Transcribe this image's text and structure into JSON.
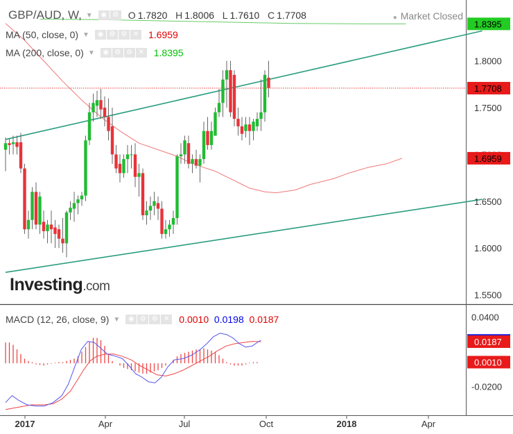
{
  "header": {
    "symbol": "GBP/AUD, W,",
    "open_label": "O",
    "open": "1.7820",
    "high_label": "H",
    "high": "1.8006",
    "low_label": "L",
    "low": "1.7610",
    "close_label": "C",
    "close": "1.7708",
    "market_status": "Market Closed",
    "ma50_label": "MA (50, close, 0)",
    "ma50_value": "1.6959",
    "ma200_label": "MA (200, close, 0)",
    "ma200_value": "1.8395",
    "macd_label": "MACD (12, 26, close, 9)",
    "macd_hist": "0.0010",
    "macd_line": "0.0198",
    "macd_signal": "0.0187"
  },
  "logo": {
    "main": "Investing",
    "suffix": ".com"
  },
  "colors": {
    "up": "#22bb33",
    "down": "#e8333a",
    "ma50": "#f07878",
    "ma200": "#66cc66",
    "channel": "#2a9d7f",
    "macd": "#5555ee",
    "signal": "#ee4444",
    "hist": "#ee4444",
    "last_price_bg": "#e81a1a",
    "ma200_bg": "#22cc22"
  },
  "chart_data": [
    {
      "type": "candlestick",
      "title": "GBP/AUD, W,",
      "x_ticks": [
        "2017",
        "Apr",
        "Jul",
        "Oct",
        "2018",
        "Apr"
      ],
      "y_ticks": [
        "1.6000",
        "1.6500",
        "1.7000",
        "1.7500",
        "1.8000",
        "1.5500"
      ],
      "ylim": [
        1.54,
        1.865
      ],
      "grid": false,
      "tags": [
        {
          "label": "1.8395",
          "value": 1.8395,
          "kind": "ma200"
        },
        {
          "label": "1.7708",
          "value": 1.7708,
          "kind": "last"
        },
        {
          "label": "1.6959",
          "value": 1.6959,
          "kind": "ma50"
        }
      ],
      "last_price": 1.7708,
      "candles": [
        [
          1.705,
          1.718,
          1.682,
          1.712
        ],
        [
          1.712,
          1.717,
          1.7,
          1.71
        ],
        [
          1.711,
          1.72,
          1.7,
          1.713
        ],
        [
          1.713,
          1.72,
          1.7,
          1.708
        ],
        [
          1.713,
          1.723,
          1.68,
          1.685
        ],
        [
          1.685,
          1.69,
          1.615,
          1.62
        ],
        [
          1.62,
          1.64,
          1.61,
          1.63
        ],
        [
          1.63,
          1.665,
          1.62,
          1.66
        ],
        [
          1.66,
          1.67,
          1.62,
          1.625
        ],
        [
          1.625,
          1.66,
          1.615,
          1.655
        ],
        [
          1.628,
          1.64,
          1.61,
          1.618
        ],
        [
          1.618,
          1.63,
          1.605,
          1.625
        ],
        [
          1.625,
          1.64,
          1.605,
          1.62
        ],
        [
          1.622,
          1.63,
          1.6,
          1.615
        ],
        [
          1.62,
          1.625,
          1.6,
          1.61
        ],
        [
          1.61,
          1.632,
          1.595,
          1.605
        ],
        [
          1.605,
          1.64,
          1.59,
          1.638
        ],
        [
          1.638,
          1.65,
          1.63,
          1.643
        ],
        [
          1.642,
          1.66,
          1.628,
          1.648
        ],
        [
          1.648,
          1.656,
          1.636,
          1.652
        ],
        [
          1.652,
          1.66,
          1.645,
          1.656
        ],
        [
          1.656,
          1.72,
          1.65,
          1.715
        ],
        [
          1.715,
          1.755,
          1.71,
          1.745
        ],
        [
          1.745,
          1.765,
          1.735,
          1.755
        ],
        [
          1.752,
          1.768,
          1.74,
          1.758
        ],
        [
          1.758,
          1.77,
          1.738,
          1.748
        ],
        [
          1.75,
          1.762,
          1.73,
          1.74
        ],
        [
          1.74,
          1.76,
          1.715,
          1.725
        ],
        [
          1.73,
          1.75,
          1.69,
          1.7
        ],
        [
          1.7,
          1.71,
          1.68,
          1.685
        ],
        [
          1.69,
          1.7,
          1.67,
          1.68
        ],
        [
          1.68,
          1.7,
          1.675,
          1.695
        ],
        [
          1.695,
          1.71,
          1.68,
          1.7
        ],
        [
          1.7,
          1.71,
          1.685,
          1.7
        ],
        [
          1.7,
          1.712,
          1.665,
          1.676
        ],
        [
          1.676,
          1.69,
          1.655,
          1.68
        ],
        [
          1.68,
          1.685,
          1.63,
          1.635
        ],
        [
          1.635,
          1.65,
          1.625,
          1.64
        ],
        [
          1.64,
          1.655,
          1.63,
          1.645
        ],
        [
          1.645,
          1.66,
          1.635,
          1.65
        ],
        [
          1.648,
          1.655,
          1.63,
          1.642
        ],
        [
          1.642,
          1.65,
          1.61,
          1.615
        ],
        [
          1.615,
          1.63,
          1.61,
          1.62
        ],
        [
          1.62,
          1.63,
          1.612,
          1.625
        ],
        [
          1.625,
          1.64,
          1.615,
          1.632
        ],
        [
          1.632,
          1.7,
          1.625,
          1.698
        ],
        [
          1.698,
          1.712,
          1.69,
          1.7
        ],
        [
          1.7,
          1.72,
          1.69,
          1.715
        ],
        [
          1.712,
          1.72,
          1.685,
          1.69
        ],
        [
          1.69,
          1.7,
          1.68,
          1.695
        ],
        [
          1.695,
          1.705,
          1.685,
          1.688
        ],
        [
          1.688,
          1.7,
          1.67,
          1.695
        ],
        [
          1.695,
          1.735,
          1.69,
          1.725
        ],
        [
          1.725,
          1.74,
          1.705,
          1.71
        ],
        [
          1.71,
          1.735,
          1.705,
          1.725
        ],
        [
          1.72,
          1.75,
          1.72,
          1.745
        ],
        [
          1.745,
          1.77,
          1.74,
          1.755
        ],
        [
          1.755,
          1.79,
          1.74,
          1.78
        ],
        [
          1.78,
          1.8,
          1.75,
          1.79
        ],
        [
          1.79,
          1.8,
          1.74,
          1.745
        ],
        [
          1.785,
          1.79,
          1.73,
          1.738
        ],
        [
          1.738,
          1.75,
          1.72,
          1.73
        ],
        [
          1.73,
          1.74,
          1.715,
          1.722
        ],
        [
          1.725,
          1.74,
          1.718,
          1.732
        ],
        [
          1.732,
          1.74,
          1.71,
          1.725
        ],
        [
          1.725,
          1.738,
          1.715,
          1.735
        ],
        [
          1.73,
          1.745,
          1.725,
          1.738
        ],
        [
          1.738,
          1.78,
          1.725,
          1.745
        ],
        [
          1.745,
          1.79,
          1.735,
          1.785
        ],
        [
          1.782,
          1.8,
          1.761,
          1.771
        ]
      ],
      "ma50": [
        [
          0,
          1.84
        ],
        [
          5,
          1.822
        ],
        [
          10,
          1.8
        ],
        [
          15,
          1.778
        ],
        [
          20,
          1.758
        ],
        [
          25,
          1.74
        ],
        [
          30,
          1.725
        ],
        [
          35,
          1.712
        ],
        [
          40,
          1.705
        ],
        [
          45,
          1.698
        ],
        [
          48,
          1.692
        ],
        [
          52,
          1.686
        ],
        [
          55,
          1.682
        ],
        [
          58,
          1.676
        ],
        [
          60,
          1.672
        ],
        [
          62,
          1.668
        ],
        [
          64,
          1.664
        ],
        [
          66,
          1.662
        ],
        [
          68,
          1.66
        ],
        [
          71,
          1.659
        ],
        [
          76,
          1.662
        ],
        [
          80,
          1.668
        ],
        [
          86,
          1.674
        ],
        [
          90,
          1.68
        ],
        [
          95,
          1.686
        ],
        [
          100,
          1.69
        ],
        [
          104,
          1.6959
        ]
      ],
      "ma200": [
        [
          9,
          1.8445
        ],
        [
          25,
          1.844
        ],
        [
          50,
          1.842
        ],
        [
          75,
          1.84
        ],
        [
          95,
          1.8395
        ],
        [
          105,
          1.8395
        ]
      ],
      "channel_upper": [
        [
          0,
          1.716
        ],
        [
          125,
          1.832
        ]
      ],
      "channel_lower": [
        [
          0,
          1.574
        ],
        [
          125,
          1.652
        ]
      ]
    },
    {
      "type": "bar",
      "title": "MACD (12, 26, close, 9)",
      "y_ticks": [
        "0.0400",
        "-0.0200"
      ],
      "ylim": [
        -0.045,
        0.05
      ],
      "tags": [
        {
          "label": "0.0198",
          "value": 0.0198,
          "kind": "macd"
        },
        {
          "label": "0.0187",
          "value": 0.0187,
          "kind": "signal"
        },
        {
          "label": "0.0010",
          "value": 0.001,
          "kind": "hist"
        }
      ],
      "histogram": [
        0.018,
        0.018,
        0.016,
        0.012,
        0.008,
        0.004,
        0.002,
        0.001,
        -0.001,
        -0.0015,
        -0.002,
        -0.001,
        -0.0005,
        0.0005,
        0.001,
        0.001,
        0.002,
        0.003,
        0.004,
        0.006,
        0.01,
        0.014,
        0.019,
        0.022,
        0.022,
        0.02,
        0.015,
        0.008,
        0.002,
        0,
        -0.002,
        -0.004,
        -0.005,
        -0.006,
        -0.007,
        -0.008,
        -0.009,
        -0.009,
        -0.008,
        -0.007,
        -0.006,
        -0.004,
        -0.002,
        0,
        0.003,
        0.006,
        0.008,
        0.009,
        0.01,
        0.011,
        0.012,
        0.012,
        0.013,
        0.012,
        0.011,
        0.01,
        0.007,
        0.004,
        0.001,
        -0.001,
        -0.002,
        -0.002,
        -0.002,
        -0.001,
        0.0005,
        0.001,
        0.001
      ],
      "macd": [
        [
          0,
          -0.034
        ],
        [
          3,
          -0.028
        ],
        [
          6,
          -0.032
        ],
        [
          10,
          -0.036
        ],
        [
          14,
          -0.037
        ],
        [
          18,
          -0.037
        ],
        [
          22,
          -0.034
        ],
        [
          26,
          -0.028
        ],
        [
          29,
          -0.018
        ],
        [
          32,
          -0.003
        ],
        [
          35,
          0.012
        ],
        [
          38,
          0.019
        ],
        [
          41,
          0.018
        ],
        [
          44,
          0.013
        ],
        [
          47,
          0.008
        ],
        [
          51,
          0.006
        ],
        [
          54,
          0.004
        ],
        [
          57,
          -0.002
        ],
        [
          60,
          -0.009
        ],
        [
          63,
          -0.012
        ],
        [
          66,
          -0.016
        ],
        [
          69,
          -0.017
        ],
        [
          72,
          -0.012
        ],
        [
          75,
          -0.003
        ],
        [
          78,
          0.003
        ],
        [
          82,
          0.004
        ],
        [
          86,
          0.007
        ],
        [
          90,
          0.012
        ],
        [
          93,
          0.017
        ],
        [
          96,
          0.023
        ],
        [
          99,
          0.026
        ],
        [
          102,
          0.025
        ],
        [
          105,
          0.022
        ],
        [
          108,
          0.017
        ],
        [
          111,
          0.014
        ],
        [
          114,
          0.015
        ],
        [
          117,
          0.019
        ],
        [
          118,
          0.0198
        ]
      ],
      "signal": [
        [
          0,
          -0.04
        ],
        [
          6,
          -0.038
        ],
        [
          12,
          -0.036
        ],
        [
          18,
          -0.036
        ],
        [
          22,
          -0.035
        ],
        [
          26,
          -0.031
        ],
        [
          30,
          -0.024
        ],
        [
          33,
          -0.015
        ],
        [
          36,
          -0.006
        ],
        [
          39,
          0.002
        ],
        [
          42,
          0.006
        ],
        [
          46,
          0.008
        ],
        [
          50,
          0.008
        ],
        [
          54,
          0.006
        ],
        [
          58,
          0.003
        ],
        [
          62,
          -0.002
        ],
        [
          66,
          -0.006
        ],
        [
          70,
          -0.01
        ],
        [
          74,
          -0.011
        ],
        [
          78,
          -0.009
        ],
        [
          82,
          -0.006
        ],
        [
          86,
          -0.002
        ],
        [
          90,
          0.002
        ],
        [
          94,
          0.006
        ],
        [
          98,
          0.011
        ],
        [
          102,
          0.015
        ],
        [
          106,
          0.017
        ],
        [
          110,
          0.018
        ],
        [
          114,
          0.019
        ],
        [
          118,
          0.0187
        ]
      ]
    }
  ]
}
